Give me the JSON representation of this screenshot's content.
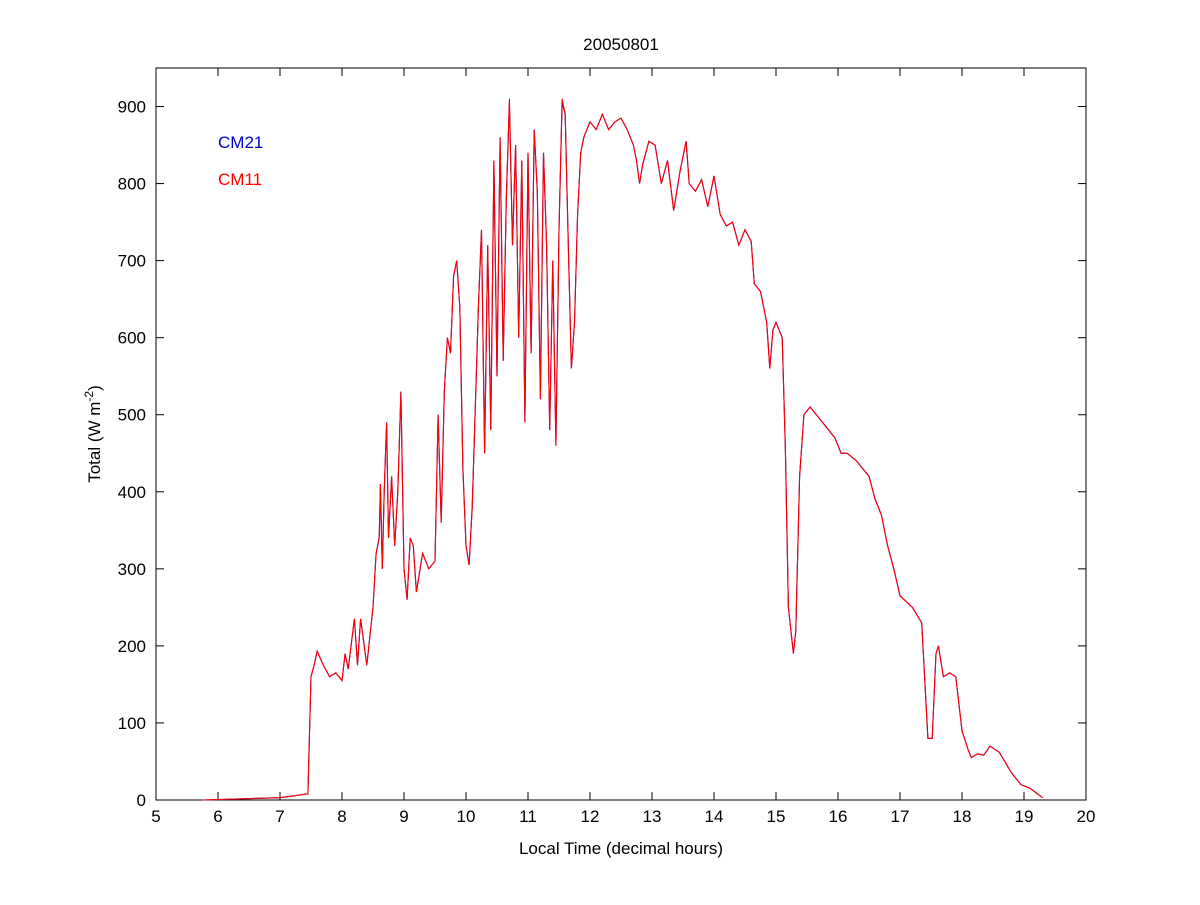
{
  "chart_data": {
    "type": "line",
    "title": "20050801",
    "xlabel": "Local Time (decimal hours)",
    "ylabel": "Total (W m^-2)",
    "ylabel_main": "Total (W m",
    "ylabel_sup": "-2",
    "ylabel_end": ")",
    "xlim": [
      5,
      20
    ],
    "ylim": [
      0,
      950
    ],
    "xticks": [
      5,
      6,
      7,
      8,
      9,
      10,
      11,
      12,
      13,
      14,
      15,
      16,
      17,
      18,
      19,
      20
    ],
    "yticks": [
      0,
      100,
      200,
      300,
      400,
      500,
      600,
      700,
      800,
      900
    ],
    "grid": false,
    "legend_position": "top-left",
    "x": [
      5.75,
      7.0,
      7.2,
      7.45,
      7.5,
      7.55,
      7.6,
      7.7,
      7.8,
      7.9,
      8.0,
      8.05,
      8.1,
      8.2,
      8.25,
      8.3,
      8.4,
      8.5,
      8.55,
      8.6,
      8.62,
      8.65,
      8.68,
      8.72,
      8.75,
      8.8,
      8.85,
      8.9,
      8.95,
      9.0,
      9.05,
      9.1,
      9.15,
      9.2,
      9.3,
      9.4,
      9.5,
      9.55,
      9.6,
      9.65,
      9.7,
      9.75,
      9.8,
      9.85,
      9.9,
      9.95,
      10.0,
      10.05,
      10.1,
      10.2,
      10.25,
      10.3,
      10.35,
      10.4,
      10.45,
      10.5,
      10.55,
      10.6,
      10.65,
      10.7,
      10.75,
      10.8,
      10.85,
      10.9,
      10.95,
      11.0,
      11.05,
      11.1,
      11.15,
      11.2,
      11.25,
      11.3,
      11.35,
      11.4,
      11.45,
      11.5,
      11.55,
      11.6,
      11.65,
      11.7,
      11.75,
      11.8,
      11.85,
      11.9,
      12.0,
      12.1,
      12.2,
      12.3,
      12.4,
      12.5,
      12.6,
      12.7,
      12.75,
      12.8,
      12.85,
      12.95,
      13.05,
      13.15,
      13.25,
      13.35,
      13.45,
      13.55,
      13.6,
      13.7,
      13.8,
      13.9,
      14.0,
      14.1,
      14.2,
      14.3,
      14.4,
      14.5,
      14.6,
      14.65,
      14.75,
      14.85,
      14.9,
      14.95,
      15.0,
      15.1,
      15.15,
      15.2,
      15.28,
      15.32,
      15.38,
      15.45,
      15.55,
      15.65,
      15.75,
      15.85,
      15.95,
      16.05,
      16.15,
      16.3,
      16.5,
      16.6,
      16.7,
      16.8,
      16.9,
      17.0,
      17.2,
      17.35,
      17.45,
      17.52,
      17.58,
      17.62,
      17.7,
      17.8,
      17.9,
      18.0,
      18.1,
      18.15,
      18.25,
      18.35,
      18.45,
      18.6,
      18.8,
      18.95,
      19.1,
      19.3
    ],
    "series": [
      {
        "name": "CM21",
        "color": "#0000cc",
        "values": [
          0,
          3,
          5,
          8,
          160,
          175,
          193,
          175,
          160,
          165,
          155,
          190,
          170,
          235,
          175,
          235,
          175,
          250,
          320,
          340,
          410,
          300,
          400,
          490,
          340,
          420,
          330,
          400,
          530,
          300,
          260,
          340,
          330,
          270,
          320,
          300,
          310,
          500,
          360,
          530,
          600,
          580,
          680,
          700,
          640,
          430,
          330,
          305,
          380,
          640,
          740,
          450,
          720,
          480,
          830,
          550,
          860,
          570,
          780,
          905,
          720,
          850,
          600,
          830,
          490,
          840,
          580,
          870,
          790,
          520,
          840,
          720,
          480,
          700,
          460,
          740,
          905,
          890,
          720,
          560,
          620,
          760,
          840,
          860,
          880,
          870,
          890,
          870,
          880,
          885,
          870,
          850,
          830,
          800,
          825,
          855,
          850,
          800,
          830,
          765,
          815,
          855,
          800,
          790,
          805,
          770,
          810,
          760,
          745,
          750,
          720,
          740,
          725,
          670,
          660,
          620,
          560,
          610,
          620,
          600,
          460,
          250,
          190,
          220,
          420,
          500,
          510,
          500,
          490,
          480,
          470,
          450,
          450,
          440,
          420,
          390,
          370,
          330,
          300,
          265,
          250,
          230,
          80,
          80,
          190,
          200,
          160,
          165,
          160,
          90,
          65,
          55,
          60,
          58,
          70,
          62,
          35,
          20,
          15,
          3
        ]
      },
      {
        "name": "CM11",
        "color": "#ff0000",
        "values": [
          0,
          3,
          5,
          8,
          160,
          175,
          193,
          175,
          160,
          165,
          155,
          190,
          170,
          235,
          175,
          235,
          175,
          250,
          320,
          340,
          410,
          300,
          400,
          490,
          340,
          420,
          330,
          400,
          530,
          300,
          260,
          340,
          330,
          270,
          320,
          300,
          310,
          500,
          360,
          530,
          600,
          580,
          680,
          700,
          640,
          430,
          330,
          305,
          380,
          640,
          740,
          450,
          720,
          480,
          830,
          550,
          860,
          570,
          780,
          910,
          720,
          850,
          600,
          830,
          490,
          840,
          580,
          870,
          790,
          520,
          840,
          720,
          480,
          700,
          460,
          740,
          910,
          890,
          720,
          560,
          620,
          760,
          840,
          860,
          880,
          870,
          890,
          870,
          880,
          885,
          870,
          850,
          830,
          800,
          825,
          855,
          850,
          800,
          830,
          765,
          815,
          855,
          800,
          790,
          805,
          770,
          810,
          760,
          745,
          750,
          720,
          740,
          725,
          670,
          660,
          620,
          560,
          610,
          620,
          600,
          460,
          250,
          190,
          220,
          420,
          500,
          510,
          500,
          490,
          480,
          470,
          450,
          450,
          440,
          420,
          390,
          370,
          330,
          300,
          265,
          250,
          230,
          80,
          80,
          190,
          200,
          160,
          165,
          160,
          90,
          65,
          55,
          60,
          58,
          70,
          62,
          35,
          20,
          15,
          3
        ]
      }
    ]
  }
}
